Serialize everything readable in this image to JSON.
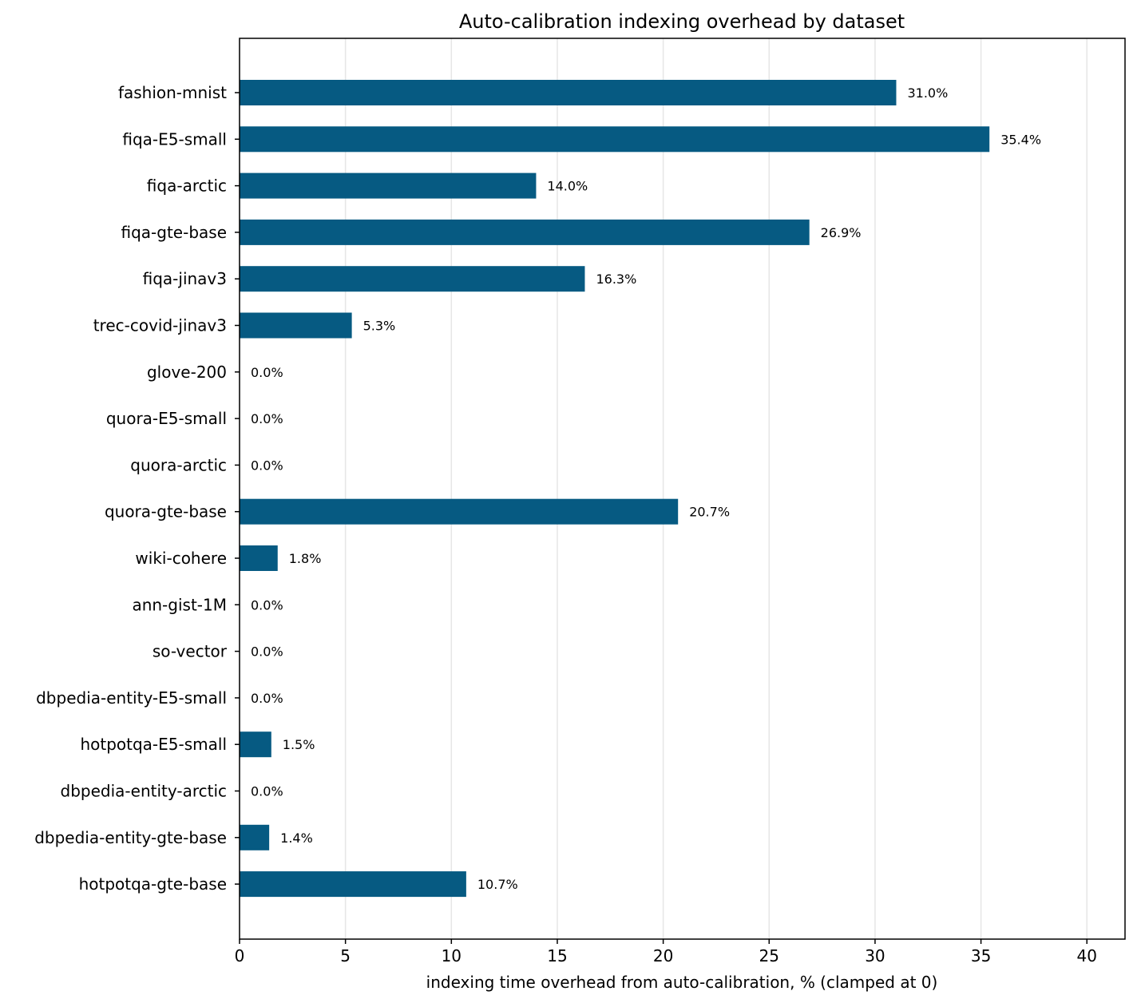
{
  "chart_data": {
    "type": "bar",
    "orientation": "horizontal",
    "title": "Auto-calibration indexing overhead by dataset",
    "xlabel": "indexing time overhead from auto-calibration, % (clamped at 0)",
    "ylabel": "",
    "xlim": [
      0,
      41.8
    ],
    "xticks": [
      0,
      5,
      10,
      15,
      20,
      25,
      30,
      35,
      40
    ],
    "grid": "vertical",
    "bar_color": "#065a82",
    "categories": [
      "fashion-mnist",
      "fiqa-E5-small",
      "fiqa-arctic",
      "fiqa-gte-base",
      "fiqa-jinav3",
      "trec-covid-jinav3",
      "glove-200",
      "quora-E5-small",
      "quora-arctic",
      "quora-gte-base",
      "wiki-cohere",
      "ann-gist-1M",
      "so-vector",
      "dbpedia-entity-E5-small",
      "hotpotqa-E5-small",
      "dbpedia-entity-arctic",
      "dbpedia-entity-gte-base",
      "hotpotqa-gte-base"
    ],
    "values": [
      31.0,
      35.4,
      14.0,
      26.9,
      16.3,
      5.3,
      0.0,
      0.0,
      0.0,
      20.7,
      1.8,
      0.0,
      0.0,
      0.0,
      1.5,
      0.0,
      1.4,
      10.7
    ],
    "value_labels": [
      "31.0%",
      "35.4%",
      "14.0%",
      "26.9%",
      "16.3%",
      "5.3%",
      "0.0%",
      "0.0%",
      "0.0%",
      "20.7%",
      "1.8%",
      "0.0%",
      "0.0%",
      "0.0%",
      "1.5%",
      "0.0%",
      "1.4%",
      "10.7%"
    ]
  }
}
